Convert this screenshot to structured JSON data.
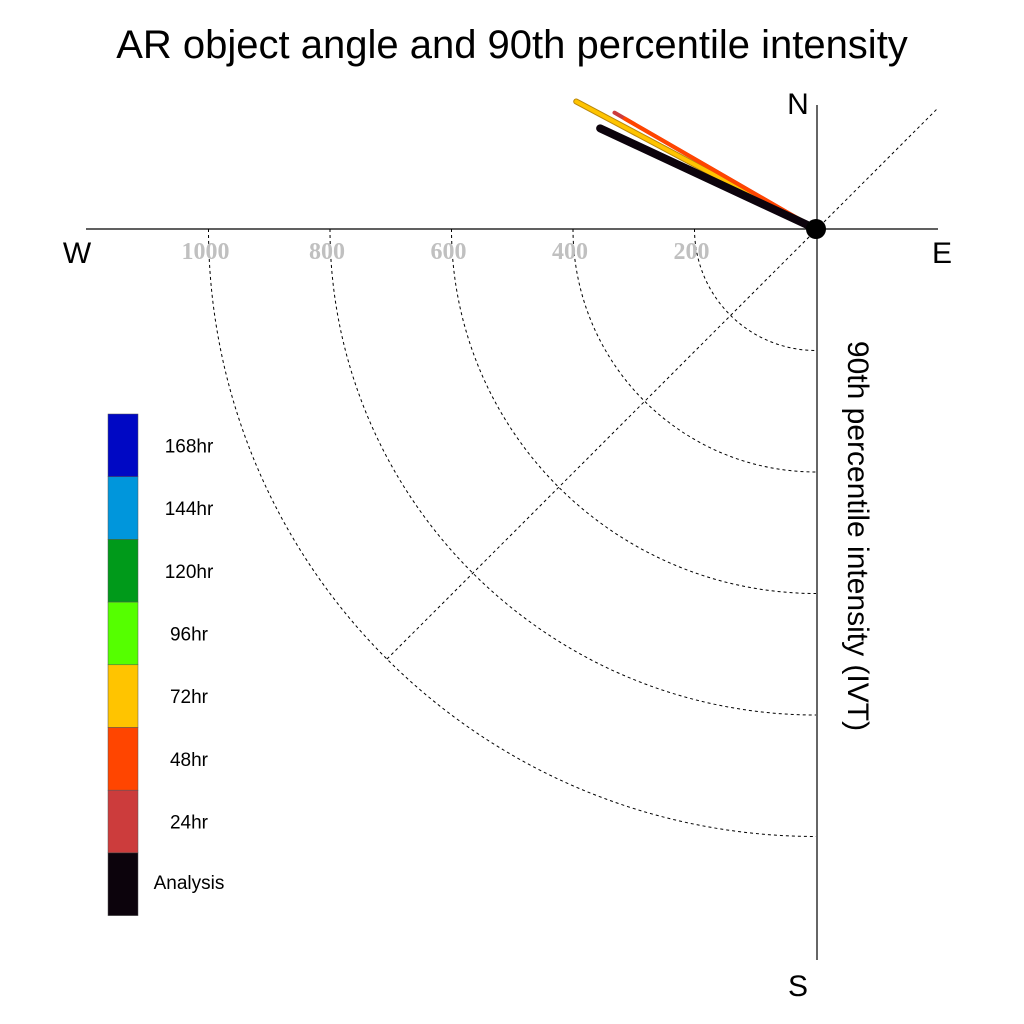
{
  "chart_data": {
    "type": "polar-vector",
    "title": "AR object angle and 90th percentile intensity",
    "ylabel": "90th percentile intensity (IVT)",
    "compass": {
      "north": "N",
      "south": "S",
      "east": "E",
      "west": "W"
    },
    "radial_ticks": [
      {
        "value": 200,
        "label": "200"
      },
      {
        "value": 400,
        "label": "400"
      },
      {
        "value": 600,
        "label": "600"
      },
      {
        "value": 800,
        "label": "800"
      },
      {
        "value": 1000,
        "label": "1000"
      }
    ],
    "rmax": 1200,
    "series": [
      {
        "name": "72hr",
        "color": "#ffc400",
        "angle_deg_from_north_ccw": 62,
        "intensity": 447
      },
      {
        "name": "24hr",
        "color": "#cc3c3c",
        "angle_deg_from_north_ccw": 60,
        "intensity": 383
      },
      {
        "name": "48hr",
        "color": "#ff4500",
        "angle_deg_from_north_ccw": 60,
        "intensity": 363
      },
      {
        "name": "Analysis",
        "color": "#0c030c",
        "angle_deg_from_north_ccw": 65,
        "intensity": 392
      }
    ],
    "legend": [
      {
        "label": "168hr",
        "color": "#0008c4"
      },
      {
        "label": "144hr",
        "color": "#0096dc"
      },
      {
        "label": "120hr",
        "color": "#009a1a"
      },
      {
        "label": "96hr",
        "color": "#55ff00"
      },
      {
        "label": "72hr",
        "color": "#ffc400"
      },
      {
        "label": "48hr",
        "color": "#ff4500"
      },
      {
        "label": "24hr",
        "color": "#cc3c3c"
      },
      {
        "label": "Analysis",
        "color": "#0c030c"
      }
    ],
    "legend_placement": "bottom-left"
  }
}
